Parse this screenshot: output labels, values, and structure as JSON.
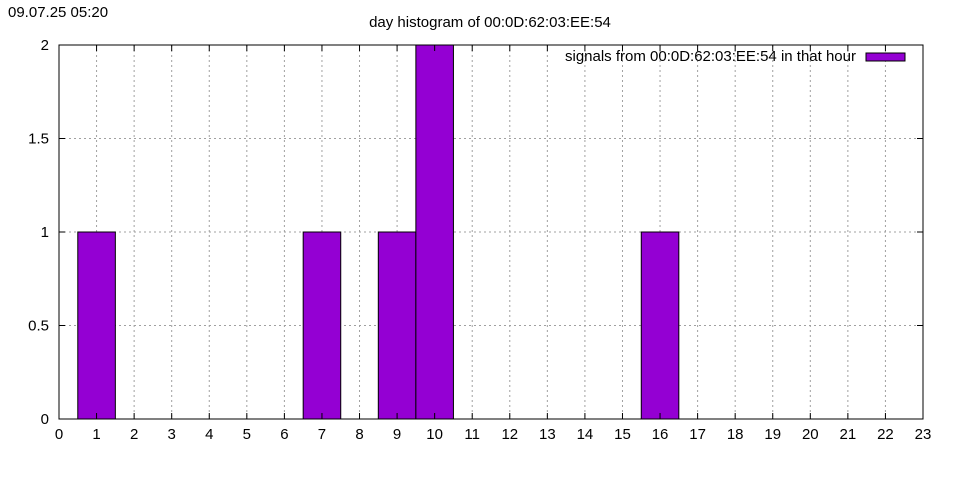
{
  "timestamp": "09.07.25 05:20",
  "chart_data": {
    "type": "bar",
    "title": "day histogram of 00:0D:62:03:EE:54",
    "xlabel": "",
    "ylabel": "",
    "xlim": [
      0,
      23
    ],
    "ylim": [
      0,
      2
    ],
    "x_ticks": [
      0,
      1,
      2,
      3,
      4,
      5,
      6,
      7,
      8,
      9,
      10,
      11,
      12,
      13,
      14,
      15,
      16,
      17,
      18,
      19,
      20,
      21,
      22,
      23
    ],
    "y_ticks": [
      0,
      0.5,
      1,
      1.5,
      2
    ],
    "grid": true,
    "legend_position": "top-right",
    "series": [
      {
        "name": "signals from 00:0D:62:03:EE:54 in that hour",
        "color": "#9400d3",
        "x": [
          1,
          7,
          9,
          10,
          16
        ],
        "values": [
          1,
          1,
          1,
          2,
          1
        ]
      }
    ]
  }
}
